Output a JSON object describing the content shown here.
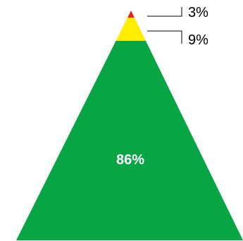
{
  "chart_data": {
    "type": "pyramid",
    "segments": [
      {
        "label": "3%",
        "value": 3,
        "color": "#e8231f"
      },
      {
        "label": "9%",
        "value": 9,
        "color": "#ffed00"
      },
      {
        "label": "86%",
        "value": 86,
        "color": "#08a545"
      }
    ],
    "title": "",
    "legend": "none"
  }
}
